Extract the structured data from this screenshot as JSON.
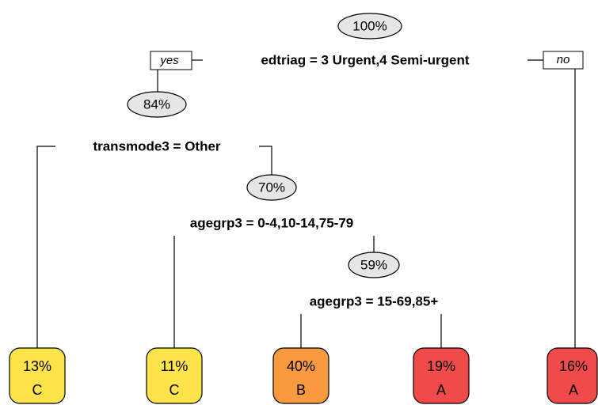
{
  "branch_labels": {
    "yes": "yes",
    "no": "no"
  },
  "nodes": [
    {
      "percent": "100%",
      "split": "edtriag = 3 Urgent,4 Semi-urgent"
    },
    {
      "percent": "84%",
      "split": "transmode3 = Other"
    },
    {
      "percent": "70%",
      "split": "agegrp3 = 0-4,10-14,75-79"
    },
    {
      "percent": "59%",
      "split": "agegrp3 = 15-69,85+"
    }
  ],
  "leaves": [
    {
      "percent": "13%",
      "class": "C"
    },
    {
      "percent": "11%",
      "class": "C"
    },
    {
      "percent": "40%",
      "class": "B"
    },
    {
      "percent": "19%",
      "class": "A"
    },
    {
      "percent": "16%",
      "class": "A"
    }
  ]
}
